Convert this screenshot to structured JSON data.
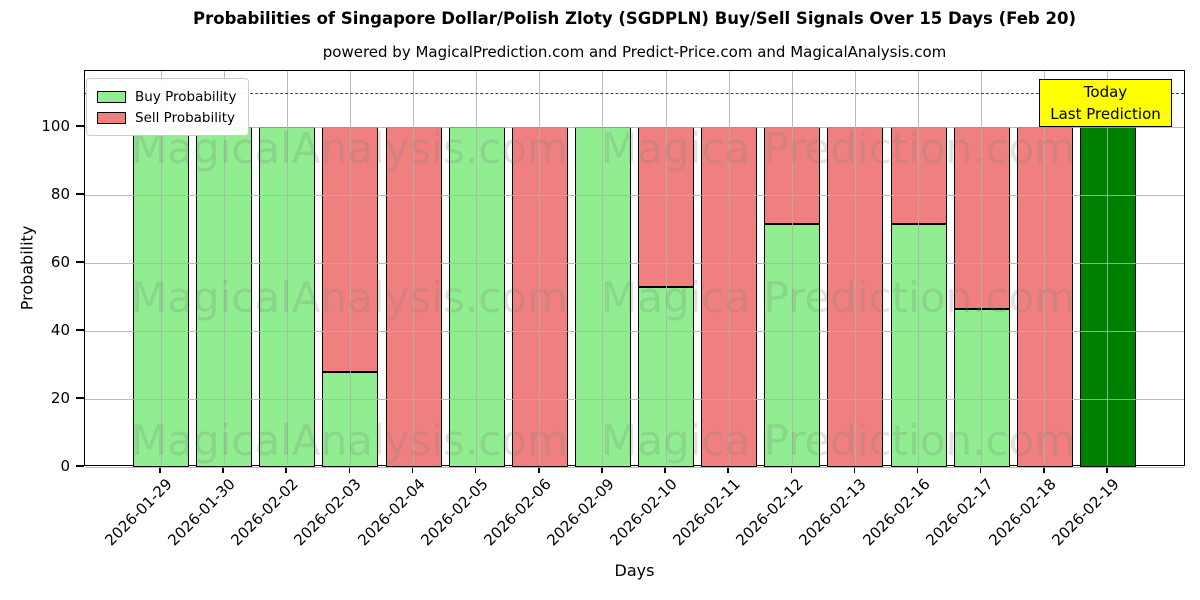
{
  "title": "Probabilities of Singapore Dollar/Polish Zloty (SGDPLN) Buy/Sell Signals Over 15 Days (Feb 20)",
  "subtitle": "powered by MagicalPrediction.com and Predict-Price.com and MagicalAnalysis.com",
  "legend": {
    "items": [
      {
        "label": "Buy Probability",
        "color": "#90EE90"
      },
      {
        "label": "Sell Probability",
        "color": "#F08080"
      }
    ]
  },
  "annotation": {
    "line1": "Today",
    "line2": "Last Prediction",
    "bg_color": "#ffff00"
  },
  "watermarks": {
    "left": "MagicalAnalysis.com",
    "right": "Magica Prediction.com"
  },
  "chart_data": {
    "type": "bar",
    "stacked": true,
    "title": "Probabilities of Singapore Dollar/Polish Zloty (SGDPLN) Buy/Sell Signals Over 15 Days (Feb 20)",
    "xlabel": "Days",
    "ylabel": "Probability",
    "categories": [
      "2026-01-29",
      "2026-01-30",
      "2026-02-02",
      "2026-02-03",
      "2026-02-04",
      "2026-02-05",
      "2026-02-06",
      "2026-02-09",
      "2026-02-10",
      "2026-02-11",
      "2026-02-12",
      "2026-02-13",
      "2026-02-16",
      "2026-02-17",
      "2026-02-18",
      "2026-02-19"
    ],
    "series": [
      {
        "name": "Buy Probability",
        "color": "#90EE90",
        "values": [
          100,
          100,
          100,
          28,
          0,
          100,
          0,
          100,
          53,
          0,
          71.5,
          0,
          71.5,
          46.5,
          0,
          100
        ]
      },
      {
        "name": "Sell Probability",
        "color": "#F08080",
        "values": [
          0,
          0,
          0,
          72,
          100,
          0,
          100,
          0,
          47,
          100,
          28.5,
          100,
          28.5,
          53.5,
          100,
          0
        ]
      }
    ],
    "today_bar": {
      "index": 15,
      "color": "#008000",
      "label": "Today Last Prediction"
    },
    "ylim": [
      0,
      116
    ],
    "yticks": [
      0,
      20,
      40,
      60,
      80,
      100
    ],
    "dashed_line_y": 110,
    "grid": true,
    "legend_position": "upper left"
  }
}
